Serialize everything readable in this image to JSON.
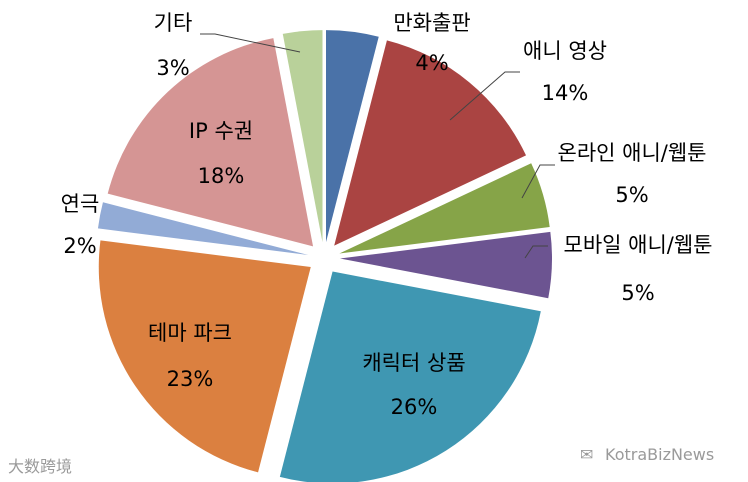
{
  "chart_data": {
    "type": "pie",
    "title": "",
    "slices": [
      {
        "label": "만화출판",
        "value": 4,
        "value_text": "4%",
        "color": "#4a72a8"
      },
      {
        "label": "애니 영상",
        "value": 14,
        "value_text": "14%",
        "color": "#aa4442"
      },
      {
        "label": "온라인 애니/웹툰",
        "value": 5,
        "value_text": "5%",
        "color": "#86a448"
      },
      {
        "label": "모바일 애니/웹툰",
        "value": 5,
        "value_text": "5%",
        "color": "#6c5491"
      },
      {
        "label": "캐릭터 상품",
        "value": 26,
        "value_text": "26%",
        "color": "#3f97b2"
      },
      {
        "label": "테마 파크",
        "value": 23,
        "value_text": "23%",
        "color": "#db8040"
      },
      {
        "label": "연극",
        "value": 2,
        "value_text": "2%",
        "color": "#92abd6"
      },
      {
        "label": "IP 수권",
        "value": 18,
        "value_text": "18%",
        "color": "#d59594"
      },
      {
        "label": "기타",
        "value": 3,
        "value_text": "3%",
        "color": "#b9d19a"
      }
    ],
    "legend": "none"
  },
  "watermarks": {
    "left": "大数跨境",
    "right": "KotraBizNews"
  }
}
